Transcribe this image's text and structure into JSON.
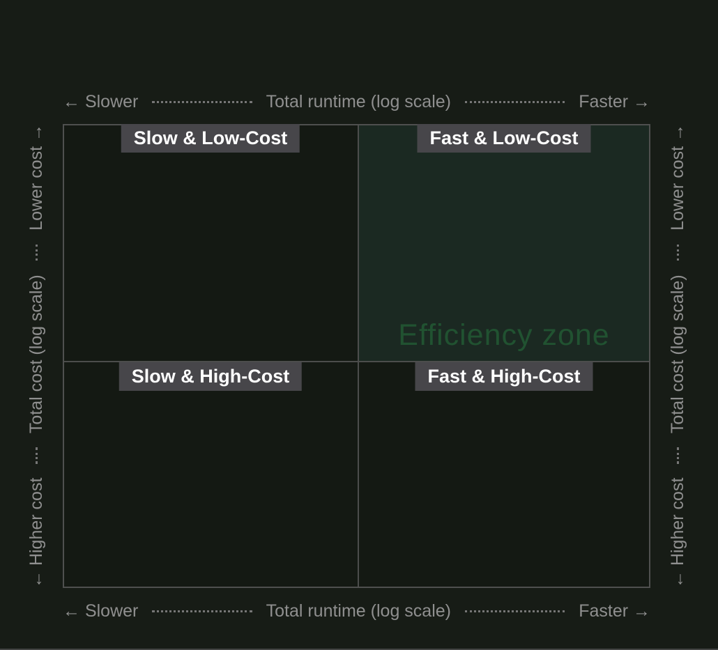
{
  "chart_data": {
    "type": "quadrant",
    "x_axis": {
      "title": "Total runtime (log scale)",
      "left": "← Slower",
      "right": "Faster →"
    },
    "y_axis": {
      "title": "Total cost (log scale)",
      "bottom": "← Higher cost",
      "top": "Lower cost →"
    },
    "quadrants": [
      {
        "position": "top-left",
        "label": "Slow & Low-Cost",
        "highlighted": false
      },
      {
        "position": "top-right",
        "label": "Fast & Low-Cost",
        "highlighted": true
      },
      {
        "position": "bottom-left",
        "label": "Slow & High-Cost",
        "highlighted": false
      },
      {
        "position": "bottom-right",
        "label": "Fast & High-Cost",
        "highlighted": false
      }
    ],
    "annotations": [
      {
        "text": "Efficiency zone",
        "location": "bottom of top-right quadrant"
      }
    ]
  },
  "colors": {
    "background": "#171c16",
    "plot_background": "#141913",
    "efficiency_zone_fill": "#1b2922",
    "efficiency_zone_text": "#215231",
    "grid_border": "#4f504f",
    "label_box_background": "#47464a",
    "label_text": "#ffffff",
    "axis_text": "#8f8f8f"
  }
}
